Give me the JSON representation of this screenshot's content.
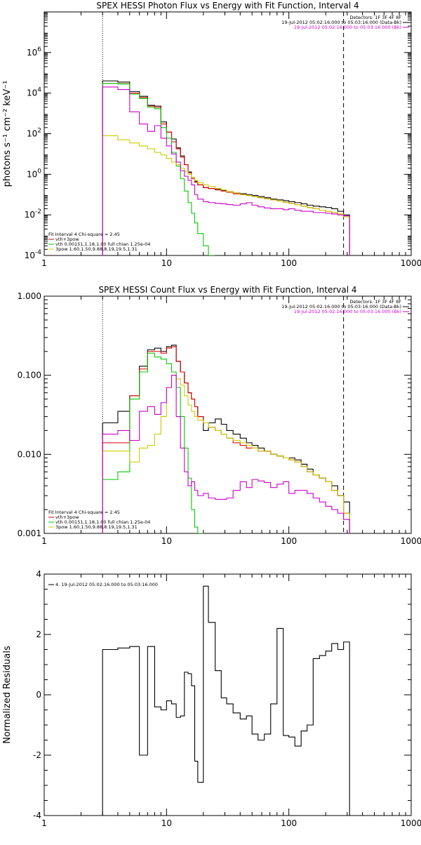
{
  "chart_data": [
    {
      "type": "line",
      "title": "SPEX HESSI Photon Flux vs Energy with Fit Function, Interval 4",
      "xlabel": "",
      "ylabel": "photons s⁻¹ cm⁻² keV⁻¹",
      "xscale": "log",
      "yscale": "log",
      "xlim": [
        1,
        1000
      ],
      "ylim": [
        0.0001,
        100000000
      ],
      "xticks": [
        "1",
        "10",
        "100",
        "1000"
      ],
      "yticks": [
        "10⁻⁴",
        "10⁻²",
        "10⁰",
        "10²",
        "10⁴",
        "10⁶"
      ],
      "vlines": [
        {
          "x": 3,
          "style": "dotted"
        },
        {
          "x": 280,
          "style": "dashed"
        }
      ],
      "info_right": [
        {
          "text": "Detectors: 1F 3F 4F 8F",
          "color": "#000000"
        },
        {
          "text": "19-Jul-2012 05:02:16.000 to 05:03:16.000 (Data-Bk)",
          "color": "#000000"
        },
        {
          "text": "19-Jul-2012 05:02:16.000 to 05:03:16.000 (Bk)",
          "color": "#cc00cc"
        }
      ],
      "info_left": [
        {
          "text": "Fit Interval 4   Chi-square = 2.45",
          "color": "#000000"
        },
        {
          "text": "vth+3pow",
          "color": "#dd0000"
        },
        {
          "text": "vth 0.00151,1.18,1.00  full chian 1.25e-04",
          "color": "#00cc00"
        },
        {
          "text": "3pow 1.60,1.50,9.88,8.19,19.5,1.31",
          "color": "#cccc00"
        }
      ],
      "series": [
        {
          "name": "Data-Bk",
          "color": "#000000",
          "step": true,
          "x": [
            3,
            4,
            5,
            6,
            7,
            8,
            9,
            10,
            11,
            12,
            13,
            14,
            15,
            16,
            17,
            18,
            20,
            22,
            25,
            28,
            31,
            35,
            40,
            45,
            50,
            56,
            63,
            71,
            80,
            90,
            100,
            112,
            126,
            141,
            158,
            178,
            200,
            224,
            251,
            280
          ],
          "y": [
            40000,
            35000,
            12000,
            7000,
            2500,
            2300,
            380,
            120,
            55,
            20,
            8,
            3,
            1.3,
            0.7,
            0.45,
            0.3,
            0.22,
            0.2,
            0.18,
            0.16,
            0.14,
            0.12,
            0.11,
            0.1,
            0.09,
            0.08,
            0.07,
            0.06,
            0.055,
            0.05,
            0.045,
            0.04,
            0.035,
            0.03,
            0.027,
            0.025,
            0.023,
            0.02,
            0.015,
            0.01
          ]
        },
        {
          "name": "vth+3pow",
          "color": "#dd0000",
          "step": true,
          "x": [
            3,
            4,
            5,
            6,
            7,
            8,
            9,
            10,
            11,
            12,
            13,
            14,
            15,
            16,
            17,
            18,
            20,
            22,
            25,
            28,
            31,
            35,
            40,
            45,
            50,
            56,
            63,
            71,
            80,
            90,
            100,
            112,
            126,
            141,
            158,
            178,
            200,
            224,
            251,
            280
          ],
          "y": [
            30000,
            29000,
            10000,
            6000,
            2300,
            2000,
            300,
            120,
            40,
            18,
            7,
            3,
            1.2,
            0.6,
            0.4,
            0.3,
            0.22,
            0.2,
            0.17,
            0.15,
            0.13,
            0.11,
            0.1,
            0.09,
            0.08,
            0.07,
            0.062,
            0.055,
            0.048,
            0.042,
            0.037,
            0.032,
            0.027,
            0.023,
            0.02,
            0.017,
            0.015,
            0.013,
            0.011,
            0.008
          ]
        },
        {
          "name": "vth",
          "color": "#00cc00",
          "step": true,
          "x": [
            3,
            4,
            5,
            6,
            7,
            8,
            9,
            10,
            11,
            12,
            13,
            14,
            15,
            16,
            17,
            18,
            20,
            22
          ],
          "y": [
            30000,
            28000,
            9000,
            5500,
            2000,
            1700,
            200,
            60,
            12,
            2.5,
            0.6,
            0.15,
            0.04,
            0.012,
            0.004,
            0.0012,
            0.0003,
            9e-05
          ]
        },
        {
          "name": "3pow",
          "color": "#cccc00",
          "step": true,
          "x": [
            3,
            4,
            5,
            6,
            7,
            8,
            9,
            10,
            11,
            12,
            13,
            14,
            15,
            16,
            17,
            18,
            20,
            22,
            25,
            28,
            31,
            35,
            40,
            45,
            50,
            56,
            63,
            71,
            80,
            90,
            100,
            112,
            126,
            141,
            158,
            178,
            200,
            224,
            251,
            280
          ],
          "y": [
            80,
            50,
            35,
            25,
            18,
            12,
            9,
            6,
            4,
            3,
            2,
            1.4,
            1,
            0.7,
            0.5,
            0.38,
            0.3,
            0.25,
            0.2,
            0.17,
            0.14,
            0.12,
            0.1,
            0.09,
            0.08,
            0.07,
            0.062,
            0.055,
            0.048,
            0.042,
            0.037,
            0.032,
            0.027,
            0.023,
            0.02,
            0.017,
            0.015,
            0.013,
            0.011,
            0.008
          ]
        },
        {
          "name": "Bk",
          "color": "#cc00cc",
          "step": true,
          "x": [
            3,
            4,
            5,
            6,
            7,
            8,
            9,
            10,
            11,
            12,
            13,
            14,
            15,
            16,
            17,
            18,
            20,
            22,
            25,
            28,
            31,
            35,
            40,
            45,
            50,
            56,
            63,
            71,
            80,
            90,
            100,
            112,
            126,
            141,
            158,
            178,
            200,
            224,
            251,
            280
          ],
          "y": [
            20000,
            15000,
            1200,
            300,
            130,
            250,
            60,
            25,
            10,
            4,
            1.5,
            0.8,
            0.5,
            0.3,
            0.1,
            0.06,
            0.045,
            0.04,
            0.037,
            0.035,
            0.032,
            0.03,
            0.035,
            0.04,
            0.03,
            0.025,
            0.022,
            0.02,
            0.02,
            0.018,
            0.02,
            0.017,
            0.015,
            0.015,
            0.013,
            0.013,
            0.012,
            0.011,
            0.01,
            0.009
          ]
        }
      ]
    },
    {
      "type": "line",
      "title": "SPEX HESSI Count Flux vs Energy with Fit Function, Interval 4",
      "xlabel": "",
      "ylabel": "",
      "xscale": "log",
      "yscale": "log",
      "xlim": [
        1,
        1000
      ],
      "ylim": [
        0.001,
        1.0
      ],
      "xticks": [
        "1",
        "10",
        "100",
        "1000"
      ],
      "yticks": [
        "0.001",
        "0.010",
        "0.100",
        "1.000"
      ],
      "vlines": [
        {
          "x": 3,
          "style": "dotted"
        },
        {
          "x": 280,
          "style": "dashed"
        }
      ],
      "info_right": [
        {
          "text": "Detectors: 1F 3F 4F 8F",
          "color": "#000000"
        },
        {
          "text": "19-Jul-2012 05:02:16.000 to 05:03:16.000 (Data-Bk)",
          "color": "#000000"
        },
        {
          "text": "19-Jul-2012 05:02:16.000 to 05:03:16.000 (Bk)",
          "color": "#cc00cc"
        }
      ],
      "info_left": [
        {
          "text": "Fit Interval 4   Chi-square = 2.45",
          "color": "#000000"
        },
        {
          "text": "vth+3pow",
          "color": "#dd0000"
        },
        {
          "text": "vth 0.00151,1.18,1.00  full chian 1.25e-04",
          "color": "#00cc00"
        },
        {
          "text": "3pow 1.60,1.50,9.88,8.19,19.5,1.31",
          "color": "#cccc00"
        }
      ],
      "series": [
        {
          "name": "Data-Bk",
          "color": "#000000",
          "step": true,
          "x": [
            3,
            4,
            5,
            6,
            7,
            8,
            9,
            10,
            11,
            12,
            13,
            14,
            15,
            16,
            17,
            18,
            20,
            22,
            25,
            28,
            31,
            35,
            40,
            45,
            50,
            56,
            63,
            71,
            80,
            90,
            100,
            112,
            126,
            141,
            158,
            178,
            200,
            224,
            251,
            280
          ],
          "y": [
            0.025,
            0.035,
            0.055,
            0.13,
            0.21,
            0.22,
            0.2,
            0.23,
            0.24,
            0.15,
            0.11,
            0.08,
            0.06,
            0.05,
            0.04,
            0.03,
            0.02,
            0.025,
            0.028,
            0.024,
            0.02,
            0.018,
            0.016,
            0.014,
            0.013,
            0.012,
            0.011,
            0.01,
            0.0095,
            0.009,
            0.009,
            0.0085,
            0.0075,
            0.0065,
            0.0055,
            0.005,
            0.0045,
            0.004,
            0.003,
            0.0025
          ]
        },
        {
          "name": "vth+3pow",
          "color": "#dd0000",
          "step": true,
          "x": [
            3,
            4,
            5,
            6,
            7,
            8,
            9,
            10,
            11,
            12,
            13,
            14,
            15,
            16,
            17,
            18,
            20,
            22,
            25,
            28,
            31,
            35,
            40,
            45,
            50,
            56,
            63,
            71,
            80,
            90,
            100,
            112,
            126,
            141,
            158,
            178,
            200,
            224,
            251,
            280
          ],
          "y": [
            0.014,
            0.014,
            0.055,
            0.12,
            0.2,
            0.2,
            0.19,
            0.22,
            0.23,
            0.15,
            0.11,
            0.08,
            0.06,
            0.05,
            0.04,
            0.03,
            0.025,
            0.022,
            0.02,
            0.018,
            0.016,
            0.014,
            0.013,
            0.012,
            0.012,
            0.011,
            0.011,
            0.01,
            0.0095,
            0.009,
            0.0085,
            0.008,
            0.007,
            0.006,
            0.0055,
            0.005,
            0.0045,
            0.0035,
            0.003,
            0.0018
          ]
        },
        {
          "name": "vth",
          "color": "#00cc00",
          "step": true,
          "x": [
            3,
            4,
            5,
            6,
            7,
            8,
            9,
            10,
            11,
            12,
            13,
            14,
            15,
            16,
            17,
            18
          ],
          "y": [
            0.0048,
            0.006,
            0.05,
            0.11,
            0.19,
            0.17,
            0.16,
            0.14,
            0.11,
            0.07,
            0.03,
            0.012,
            0.005,
            0.002,
            0.0012,
            0.001
          ]
        },
        {
          "name": "3pow",
          "color": "#cccc00",
          "step": true,
          "x": [
            3,
            4,
            5,
            6,
            7,
            8,
            9,
            10,
            11,
            12,
            13,
            14,
            15,
            16,
            17,
            18,
            20,
            22,
            25,
            28,
            31,
            35,
            40,
            45,
            50,
            56,
            63,
            71,
            80,
            90,
            100,
            112,
            126,
            141,
            158,
            178,
            200,
            224,
            251,
            280
          ],
          "y": [
            0.011,
            0.011,
            0.008,
            0.012,
            0.013,
            0.018,
            0.03,
            0.07,
            0.1,
            0.09,
            0.075,
            0.055,
            0.042,
            0.035,
            0.03,
            0.027,
            0.025,
            0.022,
            0.02,
            0.018,
            0.016,
            0.015,
            0.014,
            0.013,
            0.012,
            0.011,
            0.011,
            0.01,
            0.0095,
            0.009,
            0.0085,
            0.008,
            0.007,
            0.006,
            0.0055,
            0.005,
            0.0045,
            0.0035,
            0.003,
            0.0018
          ]
        },
        {
          "name": "Bk",
          "color": "#cc00cc",
          "step": true,
          "x": [
            3,
            4,
            5,
            6,
            7,
            8,
            9,
            10,
            11,
            12,
            13,
            14,
            15,
            16,
            17,
            18,
            20,
            22,
            25,
            28,
            31,
            35,
            40,
            45,
            50,
            56,
            63,
            71,
            80,
            90,
            100,
            112,
            126,
            141,
            158,
            178,
            200,
            224,
            251,
            280
          ],
          "y": [
            0.018,
            0.02,
            0.015,
            0.035,
            0.04,
            0.032,
            0.045,
            0.07,
            0.1,
            0.03,
            0.012,
            0.006,
            0.004,
            0.0045,
            0.0035,
            0.003,
            0.0032,
            0.0028,
            0.0027,
            0.0027,
            0.0028,
            0.0035,
            0.0045,
            0.0038,
            0.0048,
            0.0046,
            0.0044,
            0.0038,
            0.0042,
            0.0045,
            0.0032,
            0.0035,
            0.0035,
            0.0032,
            0.0028,
            0.0025,
            0.0022,
            0.002,
            0.0018,
            0.0015
          ]
        }
      ]
    },
    {
      "type": "line",
      "title": "",
      "xlabel": "",
      "ylabel": "Normalized Residuals",
      "xscale": "log",
      "yscale": "linear",
      "xlim": [
        1,
        1000
      ],
      "ylim": [
        -4,
        4
      ],
      "xticks": [
        "1",
        "10",
        "100",
        "1000"
      ],
      "yticks": [
        "-4",
        "-2",
        "0",
        "2",
        "4"
      ],
      "legend": "4. 19-Jul-2012 05:02:16.000 to 05:03:16.000",
      "series": [
        {
          "name": "4. 19-Jul-2012 05:02:16.000 to 05:03:16.000",
          "color": "#000000",
          "step": true,
          "x": [
            3,
            4,
            5,
            6,
            7,
            8,
            9,
            10,
            11,
            12,
            13,
            14,
            15,
            16,
            17,
            18,
            20,
            22,
            25,
            28,
            31,
            35,
            40,
            45,
            50,
            56,
            63,
            71,
            80,
            90,
            100,
            112,
            126,
            141,
            158,
            178,
            200,
            224,
            251,
            280
          ],
          "y": [
            1.5,
            1.55,
            1.6,
            -2.0,
            1.6,
            -0.4,
            -0.5,
            -0.2,
            -0.3,
            -0.75,
            -0.7,
            0.75,
            0.7,
            0.3,
            -2.2,
            -2.9,
            3.6,
            2.4,
            0.8,
            -0.1,
            -0.3,
            -0.6,
            -0.8,
            -0.7,
            -1.3,
            -1.5,
            -1.3,
            -0.3,
            2.2,
            -1.35,
            -1.4,
            -1.7,
            -1.2,
            -1.0,
            1.2,
            1.3,
            1.45,
            1.7,
            1.5,
            1.75
          ]
        }
      ]
    }
  ]
}
